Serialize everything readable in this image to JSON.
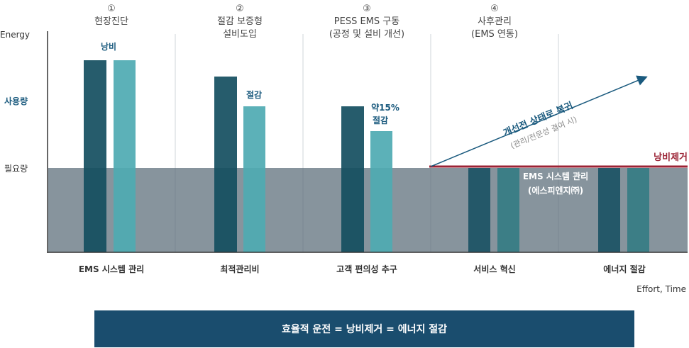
{
  "axis": {
    "y_top": "Energy",
    "y_usage": "사용량",
    "y_required": "필요량",
    "x_label": "Effort, Time"
  },
  "steps": [
    {
      "num": "①",
      "line1": "현장진단",
      "line2": ""
    },
    {
      "num": "②",
      "line1": "절감 보증형",
      "line2": "설비도입"
    },
    {
      "num": "③",
      "line1": "PESS EMS 구동",
      "line2": "(공정 및 설비 개선)"
    },
    {
      "num": "④",
      "line1": "사후관리",
      "line2": "(EMS 연동)"
    }
  ],
  "bar_labels": {
    "waste": "낭비",
    "saving": "절감",
    "pct_line1": "약15%",
    "pct_line2": "절감"
  },
  "arrow": {
    "title": "개선전 상태로 복귀",
    "subtitle": "(관리/전문성 결여 시)"
  },
  "waste_removal": "낭비제거",
  "ems_box": {
    "line1": "EMS 시스템 관리",
    "line2": "(에스피엔지㈜)"
  },
  "categories": [
    "EMS 시스템 관리",
    "최적관리비",
    "고객 편의성 추구",
    "서비스 혁신",
    "에너지 절감"
  ],
  "footer": "효율적 운전 = 낭비제거 = 에너지 절감",
  "colors": {
    "dark_bar": "#134e60",
    "light_bar": "#4eaab2",
    "baseline_band": "#5f707c",
    "accent_blue": "#1a5a7e",
    "red_line": "#9b2335",
    "footer_bg": "#1a4d6e"
  }
}
